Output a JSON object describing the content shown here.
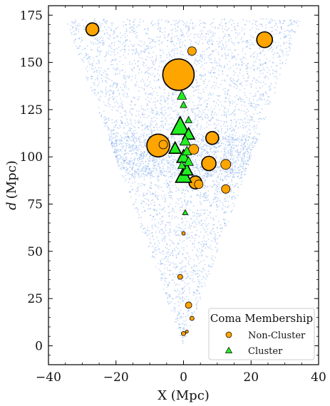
{
  "chart_data": {
    "type": "scatter",
    "title": "",
    "xlabel": "X (Mpc)",
    "ylabel_symbol": "d",
    "ylabel_unit": "(Mpc)",
    "xlim": [
      -40,
      40
    ],
    "ylim": [
      -10,
      180
    ],
    "xticks": [
      -40,
      -20,
      0,
      20,
      40
    ],
    "yticks": [
      0,
      25,
      50,
      75,
      100,
      125,
      150,
      175
    ],
    "xtick_labels": [
      "−40",
      "−20",
      "0",
      "20",
      "40"
    ],
    "ytick_labels": [
      "0",
      "25",
      "50",
      "75",
      "100",
      "125",
      "150",
      "175"
    ],
    "grid": false,
    "background_field": {
      "description_of_marks": "faint light-blue galaxy points filling a cone from the origin to d≈173",
      "color": "#7aa6ea",
      "apex": [
        0,
        0
      ],
      "top_d": 173,
      "top_half_width": 35
    },
    "legend": {
      "title": "Coma Membership",
      "placement": "lower-right",
      "entries": [
        {
          "label": "Non-Cluster",
          "marker": "circle",
          "color": "#ffa500"
        },
        {
          "label": "Cluster",
          "marker": "triangle",
          "color": "#22ee22"
        }
      ]
    },
    "series": [
      {
        "name": "Non-Cluster",
        "marker": "circle",
        "color": "#ffa500",
        "points": [
          {
            "x": -1.5,
            "y": 143.5,
            "size": 22
          },
          {
            "x": -27.0,
            "y": 167.5,
            "size": 9
          },
          {
            "x": 24.0,
            "y": 162.0,
            "size": 11
          },
          {
            "x": 2.5,
            "y": 156.0,
            "size": 6
          },
          {
            "x": -7.5,
            "y": 106.0,
            "size": 16
          },
          {
            "x": -6.0,
            "y": 106.5,
            "size": 6
          },
          {
            "x": 8.5,
            "y": 110.0,
            "size": 9
          },
          {
            "x": 3.0,
            "y": 104.0,
            "size": 7
          },
          {
            "x": 7.5,
            "y": 96.5,
            "size": 10
          },
          {
            "x": 12.5,
            "y": 96.0,
            "size": 7
          },
          {
            "x": 3.5,
            "y": 86.5,
            "size": 9
          },
          {
            "x": 4.5,
            "y": 85.5,
            "size": 6
          },
          {
            "x": 12.5,
            "y": 83.0,
            "size": 6
          },
          {
            "x": 0.0,
            "y": 59.5,
            "size": 2.5
          },
          {
            "x": -1.0,
            "y": 36.5,
            "size": 3.5
          },
          {
            "x": 1.5,
            "y": 21.5,
            "size": 4.5
          },
          {
            "x": 2.5,
            "y": 14.5,
            "size": 3
          },
          {
            "x": 0.0,
            "y": 6.5,
            "size": 3
          },
          {
            "x": 1.0,
            "y": 7.5,
            "size": 2
          }
        ]
      },
      {
        "name": "Cluster",
        "marker": "triangle",
        "color": "#22ee22",
        "points": [
          {
            "x": -0.5,
            "y": 132.5,
            "size": 7
          },
          {
            "x": 0.0,
            "y": 127.5,
            "size": 5
          },
          {
            "x": 1.5,
            "y": 119.5,
            "size": 5
          },
          {
            "x": -1.0,
            "y": 116.0,
            "size": 14
          },
          {
            "x": 1.5,
            "y": 112.0,
            "size": 9
          },
          {
            "x": 0.5,
            "y": 108.5,
            "size": 8
          },
          {
            "x": -2.5,
            "y": 104.5,
            "size": 9
          },
          {
            "x": 1.0,
            "y": 103.0,
            "size": 7
          },
          {
            "x": 0.0,
            "y": 100.0,
            "size": 10
          },
          {
            "x": 1.5,
            "y": 97.5,
            "size": 7
          },
          {
            "x": -0.5,
            "y": 95.5,
            "size": 6
          },
          {
            "x": 1.0,
            "y": 93.0,
            "size": 9
          },
          {
            "x": 0.0,
            "y": 90.0,
            "size": 12
          },
          {
            "x": 0.5,
            "y": 70.5,
            "size": 4
          }
        ]
      }
    ]
  }
}
